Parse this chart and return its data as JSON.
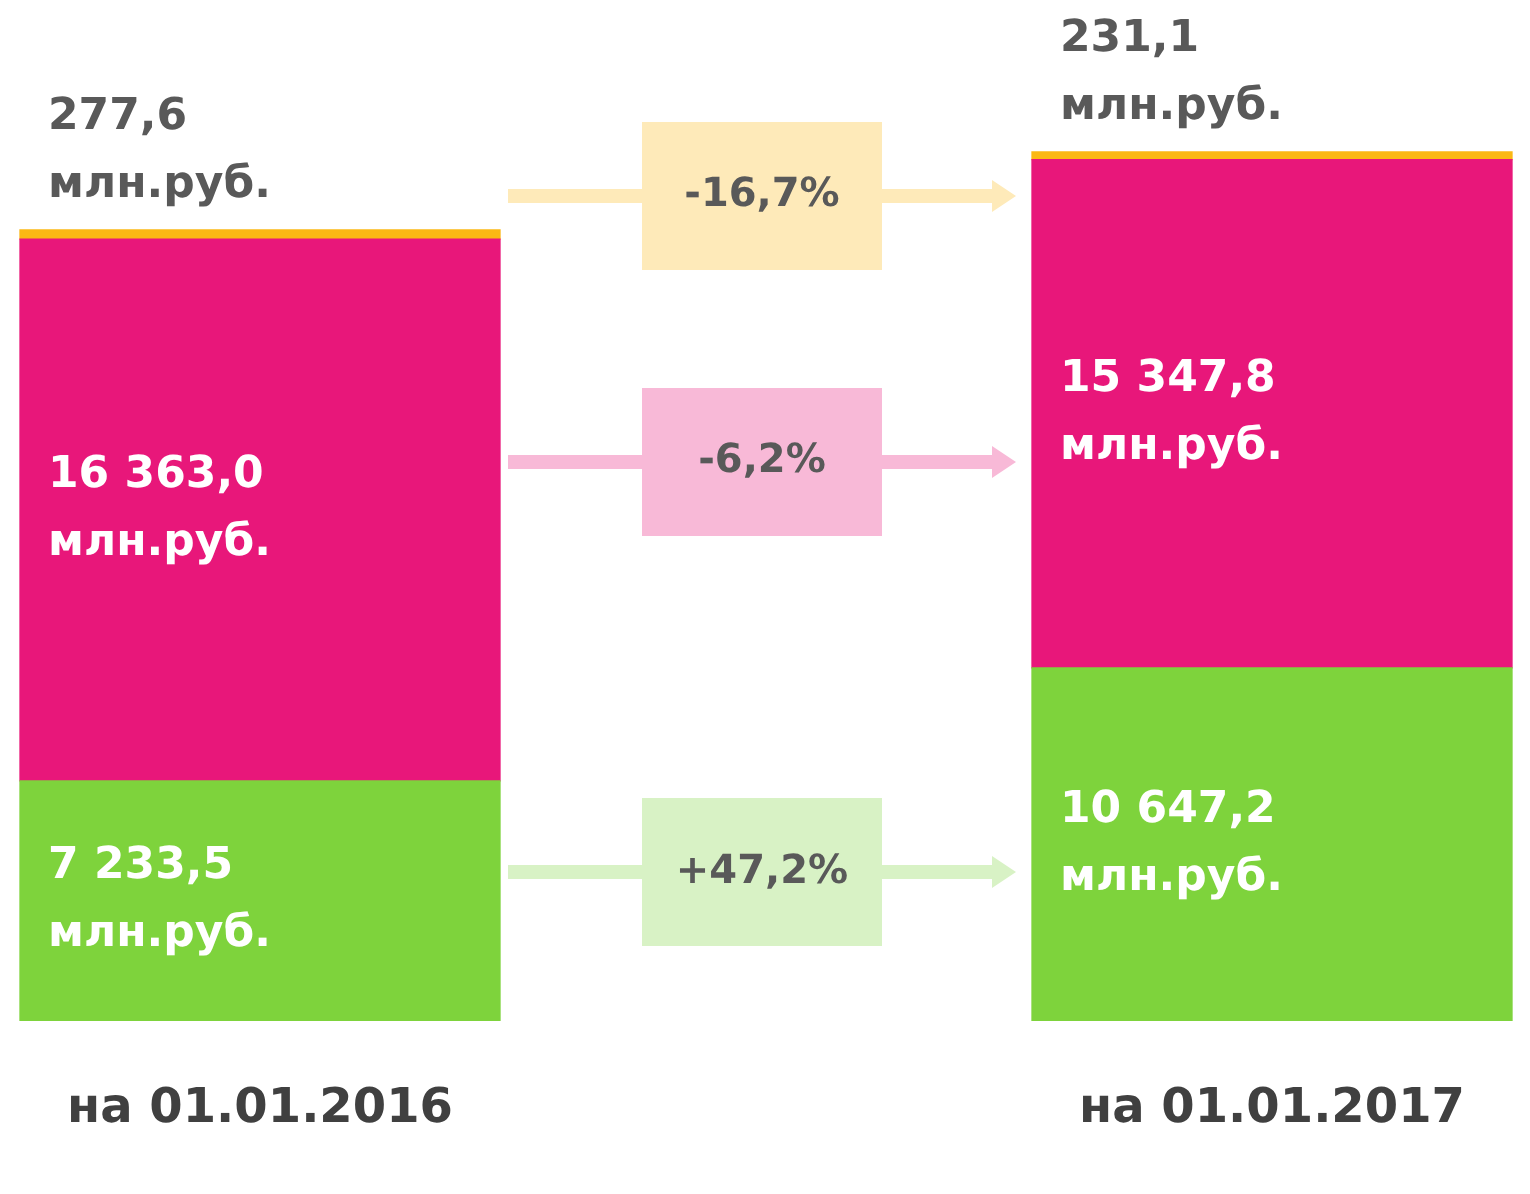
{
  "chart_data": {
    "type": "bar",
    "stacked": true,
    "categories": [
      "на 01.01.2016",
      "на 01.01.2017"
    ],
    "series": [
      {
        "color": "#7ed33c",
        "values": [
          7233.5,
          10647.2
        ],
        "value_labels": [
          "7 233,5 млн.руб.",
          "10 647,2 млн.руб."
        ]
      },
      {
        "color": "#e8177a",
        "values": [
          16363.0,
          15347.8
        ],
        "value_labels": [
          "16 363,0 млн.руб.",
          "15 347,8 млн.руб."
        ]
      },
      {
        "color": "#fbb814",
        "values": [
          277.6,
          231.1
        ],
        "value_labels": [
          "277,6 млн.руб.",
          "231,1 млн.руб."
        ]
      }
    ],
    "annotations": [
      "+47,2%",
      "-6,2%",
      "-16,7%"
    ],
    "tick_labels": "x",
    "grid": false,
    "legend": false
  }
}
